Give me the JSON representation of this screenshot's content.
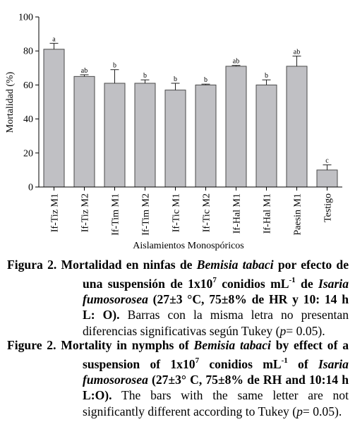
{
  "chart_data": {
    "type": "bar",
    "categories": [
      "If-Tiz M1",
      "If-Tiz M2",
      "If-Tim M1",
      "If-Tim M2",
      "If-Tic M1",
      "If-Tic M2",
      "If-Hal M1",
      "If-Hal M1",
      "Paesin M1",
      "Testigo"
    ],
    "values": [
      81,
      65,
      61,
      61,
      57,
      60,
      71,
      60,
      71,
      10
    ],
    "errors": [
      3.5,
      1,
      8,
      2,
      4,
      0.5,
      0.5,
      3,
      6,
      3
    ],
    "letters": [
      "a",
      "ab",
      "b",
      "b",
      "b",
      "b",
      "ab",
      "b",
      "ab",
      "c"
    ],
    "ylabel": "Mortalidad (%)",
    "xlabel": "Aislamientos Monospóricos",
    "ylim": [
      0,
      100
    ],
    "yticks": [
      0,
      20,
      40,
      60,
      80,
      100
    ],
    "grid": false,
    "bar_color": "#c0c0c4"
  },
  "caption_es": {
    "label": "Figura 2.",
    "bold_1": "Mortalidad en ninfas de",
    "species_1": "Bemisia tabaci",
    "bold_2": "por efecto de una suspensión de 1x10",
    "exp": "7",
    "bold_3": "conidios mL",
    "sup": "-1",
    "bold_4": "de",
    "species_2": "Isaria fumosorosea",
    "bold_5": "(27±3 °C, 75±8% de HR y 10: 14 h L: O).",
    "normal_1": "Barras con la misma letra no presentan diferencias significativas según Tukey (",
    "p_italic": "p",
    "normal_2": "= 0.05)."
  },
  "caption_en": {
    "label": "Figure 2.",
    "bold_1": "Mortality in nymphs of",
    "species_1": "Bemisia tabaci",
    "bold_2": "by effect of a suspension of 1x10",
    "exp": "7",
    "bold_3": "conidios mL",
    "sup": "-1",
    "bold_4": "of",
    "species_2": "Isaria fumosorosea",
    "bold_5": "(27±3° C, 75±8% de RH and 10:14 h L:O).",
    "normal_1": "The bars with the same letter are not significantly different according to Tukey (",
    "p_italic": "p",
    "normal_2": "= 0.05)."
  }
}
